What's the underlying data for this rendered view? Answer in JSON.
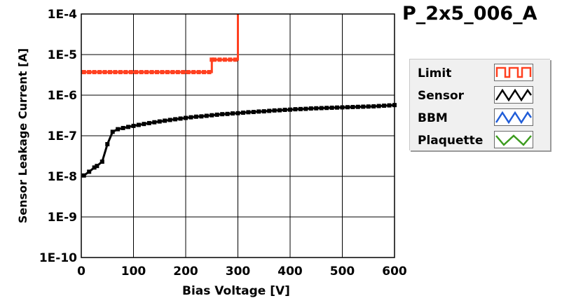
{
  "chart_data": {
    "type": "line",
    "title": "P_2x5_006_A",
    "xlabel": "Bias Voltage [V]",
    "ylabel": "Sensor Leakage Current [A]",
    "xlim": [
      0,
      600
    ],
    "ylim": [
      1e-10,
      0.0001
    ],
    "yscale": "log",
    "grid": true,
    "x_ticks": [
      0,
      100,
      200,
      300,
      400,
      500,
      600
    ],
    "y_ticks": [
      1e-10,
      1e-09,
      1e-08,
      1e-07,
      1e-06,
      1e-05,
      0.0001
    ],
    "y_tick_labels": [
      "1E-10",
      "1E-9",
      "1E-8",
      "1E-7",
      "1E-6",
      "1E-5",
      "1E-4"
    ],
    "legend_position": "right",
    "series": [
      {
        "name": "Limit",
        "color": "#ff4020",
        "marker": "square",
        "step": true,
        "x": [
          5,
          15,
          25,
          35,
          45,
          55,
          65,
          75,
          85,
          95,
          105,
          115,
          125,
          135,
          145,
          155,
          165,
          175,
          185,
          195,
          205,
          215,
          225,
          235,
          245,
          250,
          255,
          265,
          275,
          285,
          295,
          300
        ],
        "y": [
          3.7e-06,
          3.7e-06,
          3.7e-06,
          3.7e-06,
          3.7e-06,
          3.7e-06,
          3.7e-06,
          3.7e-06,
          3.7e-06,
          3.7e-06,
          3.7e-06,
          3.7e-06,
          3.7e-06,
          3.7e-06,
          3.7e-06,
          3.7e-06,
          3.7e-06,
          3.7e-06,
          3.7e-06,
          3.7e-06,
          3.7e-06,
          3.7e-06,
          3.7e-06,
          3.7e-06,
          3.7e-06,
          7.5e-06,
          7.5e-06,
          7.5e-06,
          7.5e-06,
          7.5e-06,
          7.5e-06,
          0.0001
        ]
      },
      {
        "name": "Sensor",
        "color": "#000000",
        "marker": "square",
        "x": [
          5,
          15,
          25,
          30,
          40,
          50,
          60,
          70,
          80,
          90,
          100,
          110,
          120,
          130,
          140,
          150,
          160,
          170,
          180,
          190,
          200,
          210,
          220,
          230,
          240,
          250,
          260,
          270,
          280,
          290,
          300,
          310,
          320,
          330,
          340,
          350,
          360,
          370,
          380,
          390,
          400,
          410,
          420,
          430,
          440,
          450,
          460,
          470,
          480,
          490,
          500,
          510,
          520,
          530,
          540,
          550,
          560,
          570,
          580,
          590,
          600
        ],
        "y": [
          1.05e-08,
          1.3e-08,
          1.65e-08,
          1.8e-08,
          2.3e-08,
          6.2e-08,
          1.25e-07,
          1.45e-07,
          1.55e-07,
          1.65e-07,
          1.75e-07,
          1.85e-07,
          1.95e-07,
          2.05e-07,
          2.15e-07,
          2.25e-07,
          2.35e-07,
          2.45e-07,
          2.55e-07,
          2.65e-07,
          2.75e-07,
          2.85e-07,
          2.95e-07,
          3e-07,
          3.1e-07,
          3.2e-07,
          3.3e-07,
          3.4e-07,
          3.45e-07,
          3.55e-07,
          3.6e-07,
          3.7e-07,
          3.8e-07,
          3.85e-07,
          3.95e-07,
          4e-07,
          4.1e-07,
          4.2e-07,
          4.25e-07,
          4.35e-07,
          4.4e-07,
          4.5e-07,
          4.55e-07,
          4.6e-07,
          4.7e-07,
          4.75e-07,
          4.8e-07,
          4.85e-07,
          4.9e-07,
          4.95e-07,
          5e-07,
          5.05e-07,
          5.1e-07,
          5.15e-07,
          5.2e-07,
          5.25e-07,
          5.3e-07,
          5.4e-07,
          5.5e-07,
          5.6e-07,
          5.7e-07
        ]
      },
      {
        "name": "BBM",
        "color": "#1f5cd8",
        "x": [],
        "y": []
      },
      {
        "name": "Plaquette",
        "color": "#3c9b1e",
        "x": [],
        "y": []
      }
    ]
  }
}
